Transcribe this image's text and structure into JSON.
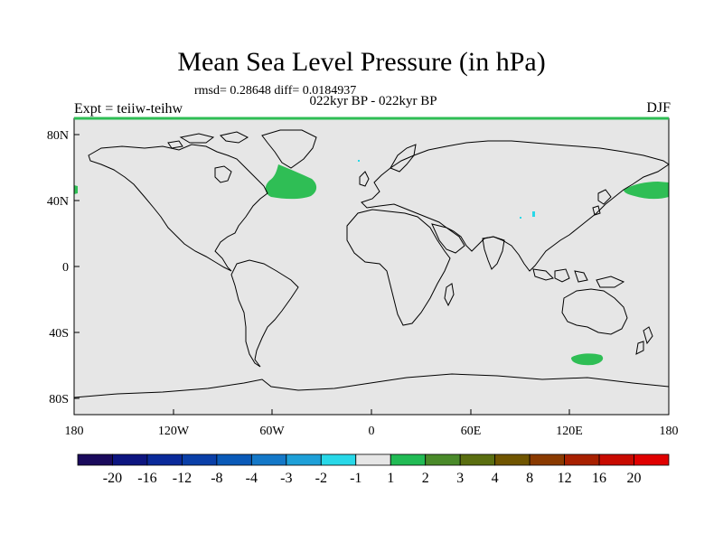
{
  "title": "Mean Sea Level Pressure (in hPa)",
  "stats": "rmsd= 0.28648 diff= 0.0184937",
  "subtitle": "022kyr BP - 022kyr BP",
  "experiment": "Expt = teiiw-teihw",
  "season": "DJF",
  "lat_ticks": [
    "80N",
    "40N",
    "0",
    "40S",
    "80S"
  ],
  "lon_ticks": [
    "180",
    "120W",
    "60W",
    "0",
    "60E",
    "120E",
    "180"
  ],
  "colorbar": {
    "labels": [
      "-20",
      "-16",
      "-12",
      "-8",
      "-4",
      "-3",
      "-2",
      "-1",
      "1",
      "2",
      "3",
      "4",
      "8",
      "12",
      "16",
      "20"
    ],
    "colors": [
      "#1a0a5c",
      "#0d1580",
      "#0a2a9a",
      "#0a3fa8",
      "#0a5ab8",
      "#1478c8",
      "#1ea0d8",
      "#28d8e8",
      "#e6e6e6",
      "#22bb55",
      "#4a8a2a",
      "#5a6e10",
      "#705500",
      "#8a3a00",
      "#a82000",
      "#c80a00",
      "#e00000"
    ]
  },
  "colors": {
    "ocean_land_fill": "#e6e6e6",
    "positive_anomaly": "#2fbe55",
    "cyan_anomaly": "#28d8e8"
  }
}
